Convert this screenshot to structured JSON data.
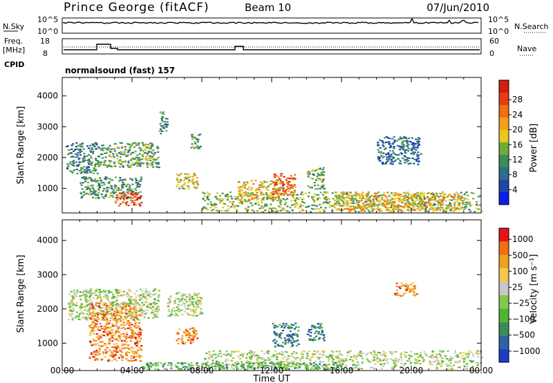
{
  "header": {
    "station": "Prince George (fitACF)",
    "beam": "Beam 10",
    "date": "07/Jun/2010"
  },
  "status_panels": {
    "nsky_label": "N.Sky",
    "nsky_ticks": [
      "10^5",
      "10^0"
    ],
    "nsearch_label": "N.Search",
    "nsearch_ticks": [
      "10^5",
      "10^0"
    ],
    "freq_label": "Freq.",
    "freq_unit": "[MHz]",
    "freq_ticks": [
      "18",
      "8"
    ],
    "nave_label": "Nave",
    "nave_ticks": [
      "60",
      "0"
    ],
    "cpid_label": "CPID",
    "cpid_value": "normalsound (fast) 157"
  },
  "chart_data": [
    {
      "type": "heatmap",
      "name": "power-panel",
      "ylabel": "Slant Range [km]",
      "yticks": [
        "1000",
        "2000",
        "3000",
        "4000"
      ],
      "ylim": [
        200,
        4600
      ],
      "xlim": [
        0,
        24
      ],
      "colorbar_label": "Power [dB]",
      "colorbar_ticks": [
        "4",
        "8",
        "12",
        "16",
        "20",
        "24",
        "28"
      ],
      "colorbar_colors": [
        "#0a1ee6",
        "#1e46aa",
        "#2d6e8c",
        "#3c8c5a",
        "#6eaa3c",
        "#e6c81e",
        "#f0a01e",
        "#f06e14",
        "#e63c0f",
        "#d21e0f"
      ],
      "regions": [
        {
          "t0": 0.2,
          "t1": 2.0,
          "r0": 1500,
          "r1": 2500,
          "level": 0.3
        },
        {
          "t0": 2.0,
          "t1": 5.5,
          "r0": 1700,
          "r1": 2500,
          "level": 0.4
        },
        {
          "t0": 1.0,
          "t1": 4.5,
          "r0": 700,
          "r1": 1400,
          "level": 0.35
        },
        {
          "t0": 3.0,
          "t1": 4.5,
          "r0": 450,
          "r1": 900,
          "level": 0.85
        },
        {
          "t0": 6.5,
          "t1": 7.8,
          "r0": 1000,
          "r1": 1500,
          "level": 0.55
        },
        {
          "t0": 5.5,
          "t1": 6.0,
          "r0": 2800,
          "r1": 3500,
          "level": 0.3
        },
        {
          "t0": 7.3,
          "t1": 7.9,
          "r0": 2300,
          "r1": 2800,
          "level": 0.4
        },
        {
          "t0": 8.0,
          "t1": 24.0,
          "r0": 250,
          "r1": 900,
          "level": 0.45
        },
        {
          "t0": 10.0,
          "t1": 12.5,
          "r0": 600,
          "r1": 1300,
          "level": 0.6
        },
        {
          "t0": 12.0,
          "t1": 13.3,
          "r0": 800,
          "r1": 1500,
          "level": 0.8
        },
        {
          "t0": 14.0,
          "t1": 15.0,
          "r0": 1000,
          "r1": 1700,
          "level": 0.4
        },
        {
          "t0": 15.5,
          "t1": 23.0,
          "r0": 300,
          "r1": 900,
          "level": 0.6
        },
        {
          "t0": 18.0,
          "t1": 20.5,
          "r0": 1800,
          "r1": 2700,
          "level": 0.25
        }
      ]
    },
    {
      "type": "heatmap",
      "name": "velocity-panel",
      "ylabel": "Slant Range [km]",
      "yticks": [
        "1000",
        "2000",
        "3000",
        "4000"
      ],
      "ylim": [
        200,
        4600
      ],
      "xlabel": "Time UT",
      "xticks": [
        "00:00",
        "04:00",
        "08:00",
        "12:00",
        "16:00",
        "20:00",
        "00:00"
      ],
      "xlim": [
        0,
        24
      ],
      "colorbar_label": "Velocity [m s⁻¹]",
      "colorbar_ticks": [
        "1000",
        "500",
        "100",
        "25",
        "−25",
        "−100",
        "−500",
        "−1000"
      ],
      "colorbar_colors": [
        "#1e3cc8",
        "#2d64a0",
        "#3c8c5a",
        "#50b432",
        "#82c850",
        "#c8c8c8",
        "#f0c850",
        "#f0a01e",
        "#f06e14",
        "#e61414"
      ],
      "regions": [
        {
          "t0": 0.3,
          "t1": 5.5,
          "r0": 1700,
          "r1": 2600,
          "level": 0.5
        },
        {
          "t0": 6.0,
          "t1": 8.0,
          "r0": 1800,
          "r1": 2500,
          "level": 0.5
        },
        {
          "t0": 1.5,
          "t1": 4.5,
          "r0": 500,
          "r1": 2200,
          "level": 0.78
        },
        {
          "t0": 6.5,
          "t1": 7.7,
          "r0": 1000,
          "r1": 1500,
          "level": 0.78
        },
        {
          "t0": 8.0,
          "t1": 24.0,
          "r0": 250,
          "r1": 800,
          "level": 0.5
        },
        {
          "t0": 12.0,
          "t1": 13.5,
          "r0": 900,
          "r1": 1600,
          "level": 0.22
        },
        {
          "t0": 14.0,
          "t1": 15.0,
          "r0": 1100,
          "r1": 1600,
          "level": 0.22
        },
        {
          "t0": 19.0,
          "t1": 20.3,
          "r0": 2400,
          "r1": 2800,
          "level": 0.78
        },
        {
          "t0": 4.5,
          "t1": 16.0,
          "r0": 250,
          "r1": 450,
          "level": 0.35
        }
      ]
    }
  ]
}
